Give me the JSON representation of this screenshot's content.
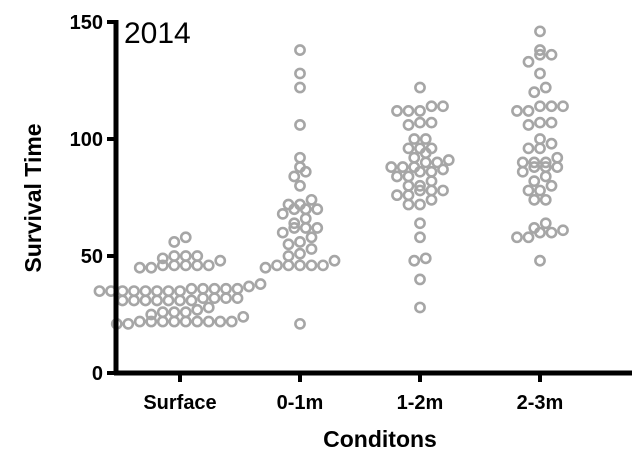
{
  "chart_data": {
    "type": "scatter",
    "title": "2014",
    "xlabel": "Conditons",
    "ylabel": "Survival Time",
    "ylim": [
      0,
      150
    ],
    "yticks": [
      0,
      50,
      100,
      150
    ],
    "categories": [
      "Surface",
      "0-1m",
      "1-2m",
      "2-3m"
    ],
    "marker_color": "#a6a6a6",
    "grid": false,
    "legend": "none",
    "series": [
      {
        "values": [
          58,
          56,
          50,
          50,
          50,
          49,
          48,
          46,
          46,
          46,
          46,
          46,
          45,
          45,
          38,
          37,
          36,
          36,
          36,
          36,
          36,
          35,
          35,
          35,
          35,
          35,
          35,
          35,
          35,
          32,
          32,
          32,
          32,
          31,
          31,
          31,
          31,
          31,
          31,
          31,
          28,
          27,
          26,
          26,
          26,
          25,
          24,
          22,
          22,
          22,
          22,
          22,
          22,
          22,
          22,
          22,
          21,
          21
        ]
      },
      {
        "values": [
          138,
          128,
          122,
          106,
          92,
          88,
          86,
          84,
          80,
          74,
          72,
          72,
          70,
          70,
          70,
          68,
          66,
          64,
          62,
          62,
          62,
          60,
          58,
          56,
          55,
          53,
          51,
          50,
          48,
          46,
          46,
          46,
          46,
          46,
          45,
          21
        ]
      },
      {
        "values": [
          122,
          114,
          114,
          112,
          112,
          112,
          107,
          107,
          106,
          100,
          100,
          96,
          96,
          96,
          94,
          92,
          91,
          90,
          90,
          88,
          88,
          88,
          87,
          86,
          86,
          84,
          84,
          82,
          80,
          80,
          78,
          78,
          78,
          76,
          76,
          74,
          72,
          72,
          64,
          58,
          49,
          48,
          40,
          28
        ]
      },
      {
        "values": [
          146,
          138,
          136,
          136,
          133,
          128,
          122,
          120,
          114,
          114,
          114,
          112,
          112,
          107,
          107,
          106,
          100,
          98,
          96,
          96,
          92,
          90,
          90,
          90,
          88,
          88,
          88,
          86,
          84,
          82,
          80,
          78,
          78,
          74,
          74,
          64,
          62,
          61,
          60,
          60,
          58,
          58,
          48
        ]
      }
    ]
  }
}
